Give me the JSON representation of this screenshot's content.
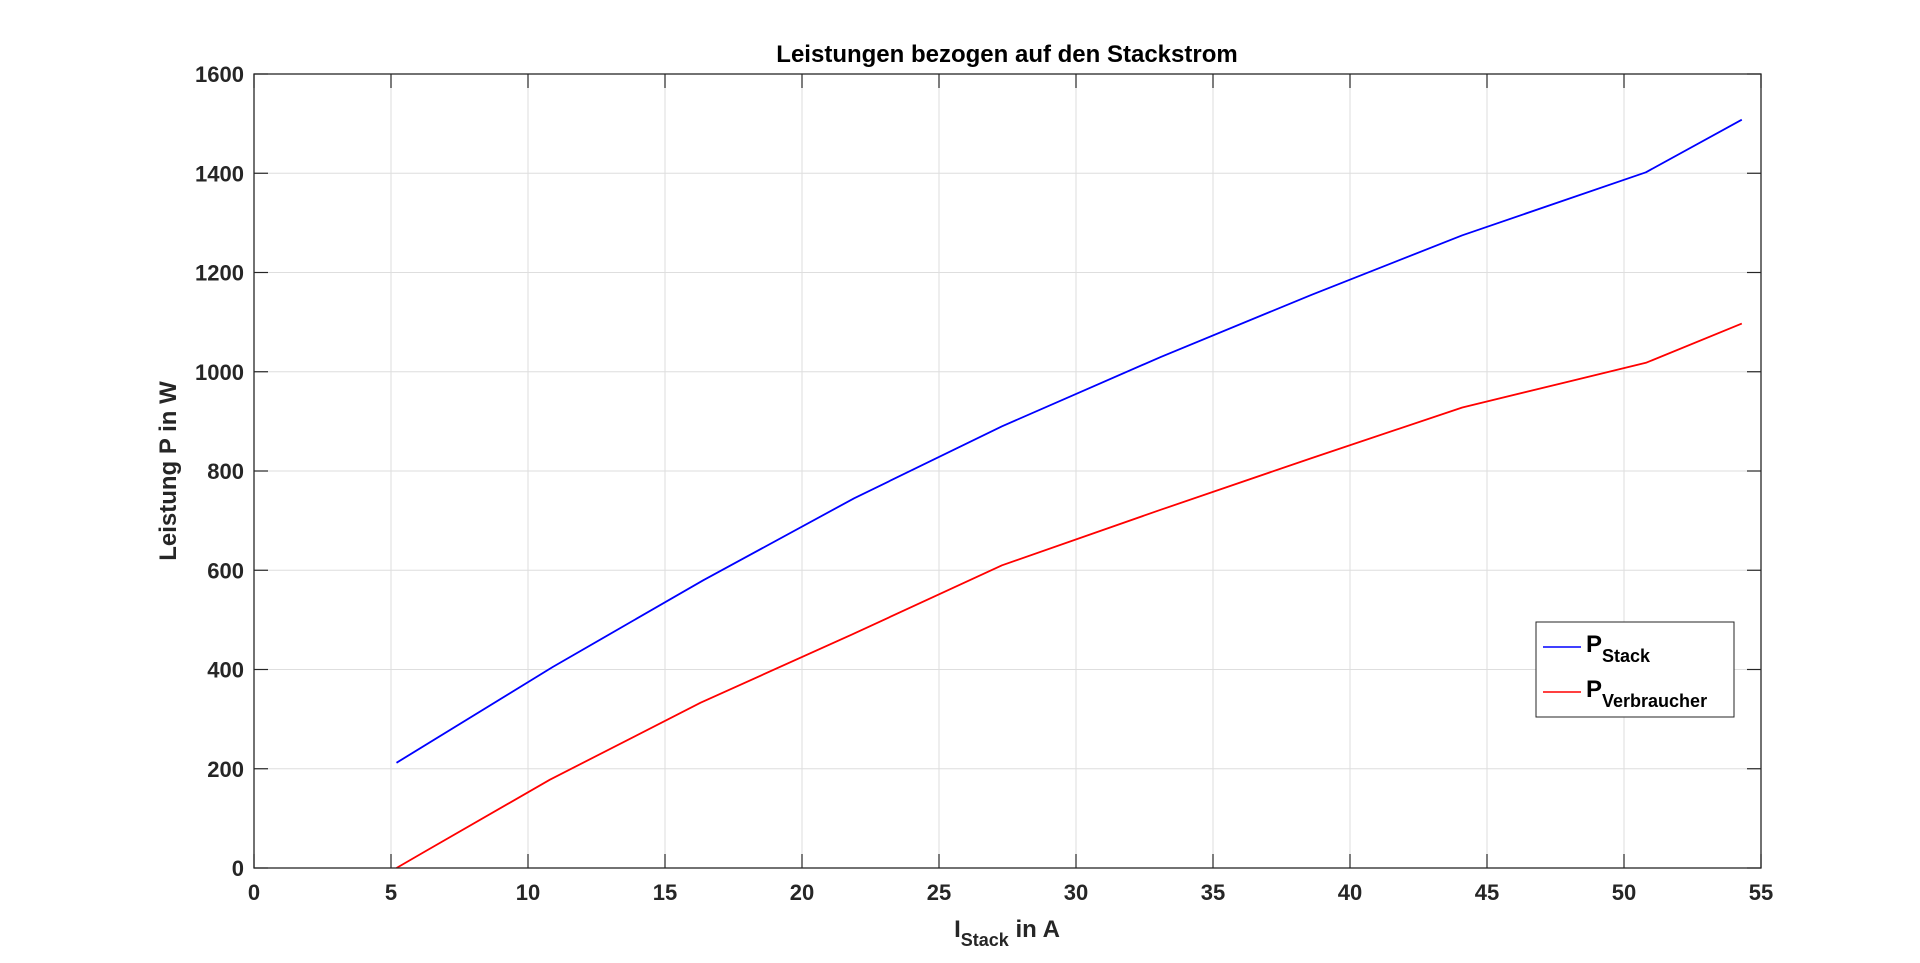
{
  "chart_data": {
    "type": "line",
    "title": "Leistungen bezogen auf den Stackstrom",
    "xlabel": {
      "main": "I",
      "sub": "Stack",
      "suffix": " in A"
    },
    "ylabel": "Leistung P in W",
    "xlim": [
      0,
      55
    ],
    "ylim": [
      0,
      1600
    ],
    "xticks": [
      0,
      5,
      10,
      15,
      20,
      25,
      30,
      35,
      40,
      45,
      50,
      55
    ],
    "yticks": [
      0,
      200,
      400,
      600,
      800,
      1000,
      1200,
      1400,
      1600
    ],
    "grid": true,
    "legend_position": "lower-right",
    "series": [
      {
        "name": {
          "main": "P",
          "sub": "Stack"
        },
        "color": "#0000ff",
        "x": [
          5.2,
          10.9,
          16.4,
          21.9,
          27.3,
          33.1,
          38.6,
          44.1,
          50.8,
          54.3
        ],
        "y": [
          212,
          405,
          580,
          745,
          890,
          1030,
          1155,
          1275,
          1402,
          1508
        ]
      },
      {
        "name": {
          "main": "P",
          "sub": "Verbraucher"
        },
        "color": "#ff0000",
        "x": [
          5.2,
          6.2,
          10.8,
          16.3,
          21.8,
          27.3,
          33.1,
          38.6,
          44.1,
          50.8,
          54.3
        ],
        "y": [
          0,
          32,
          178,
          333,
          470,
          610,
          722,
          826,
          928,
          1018,
          1097
        ]
      }
    ]
  }
}
